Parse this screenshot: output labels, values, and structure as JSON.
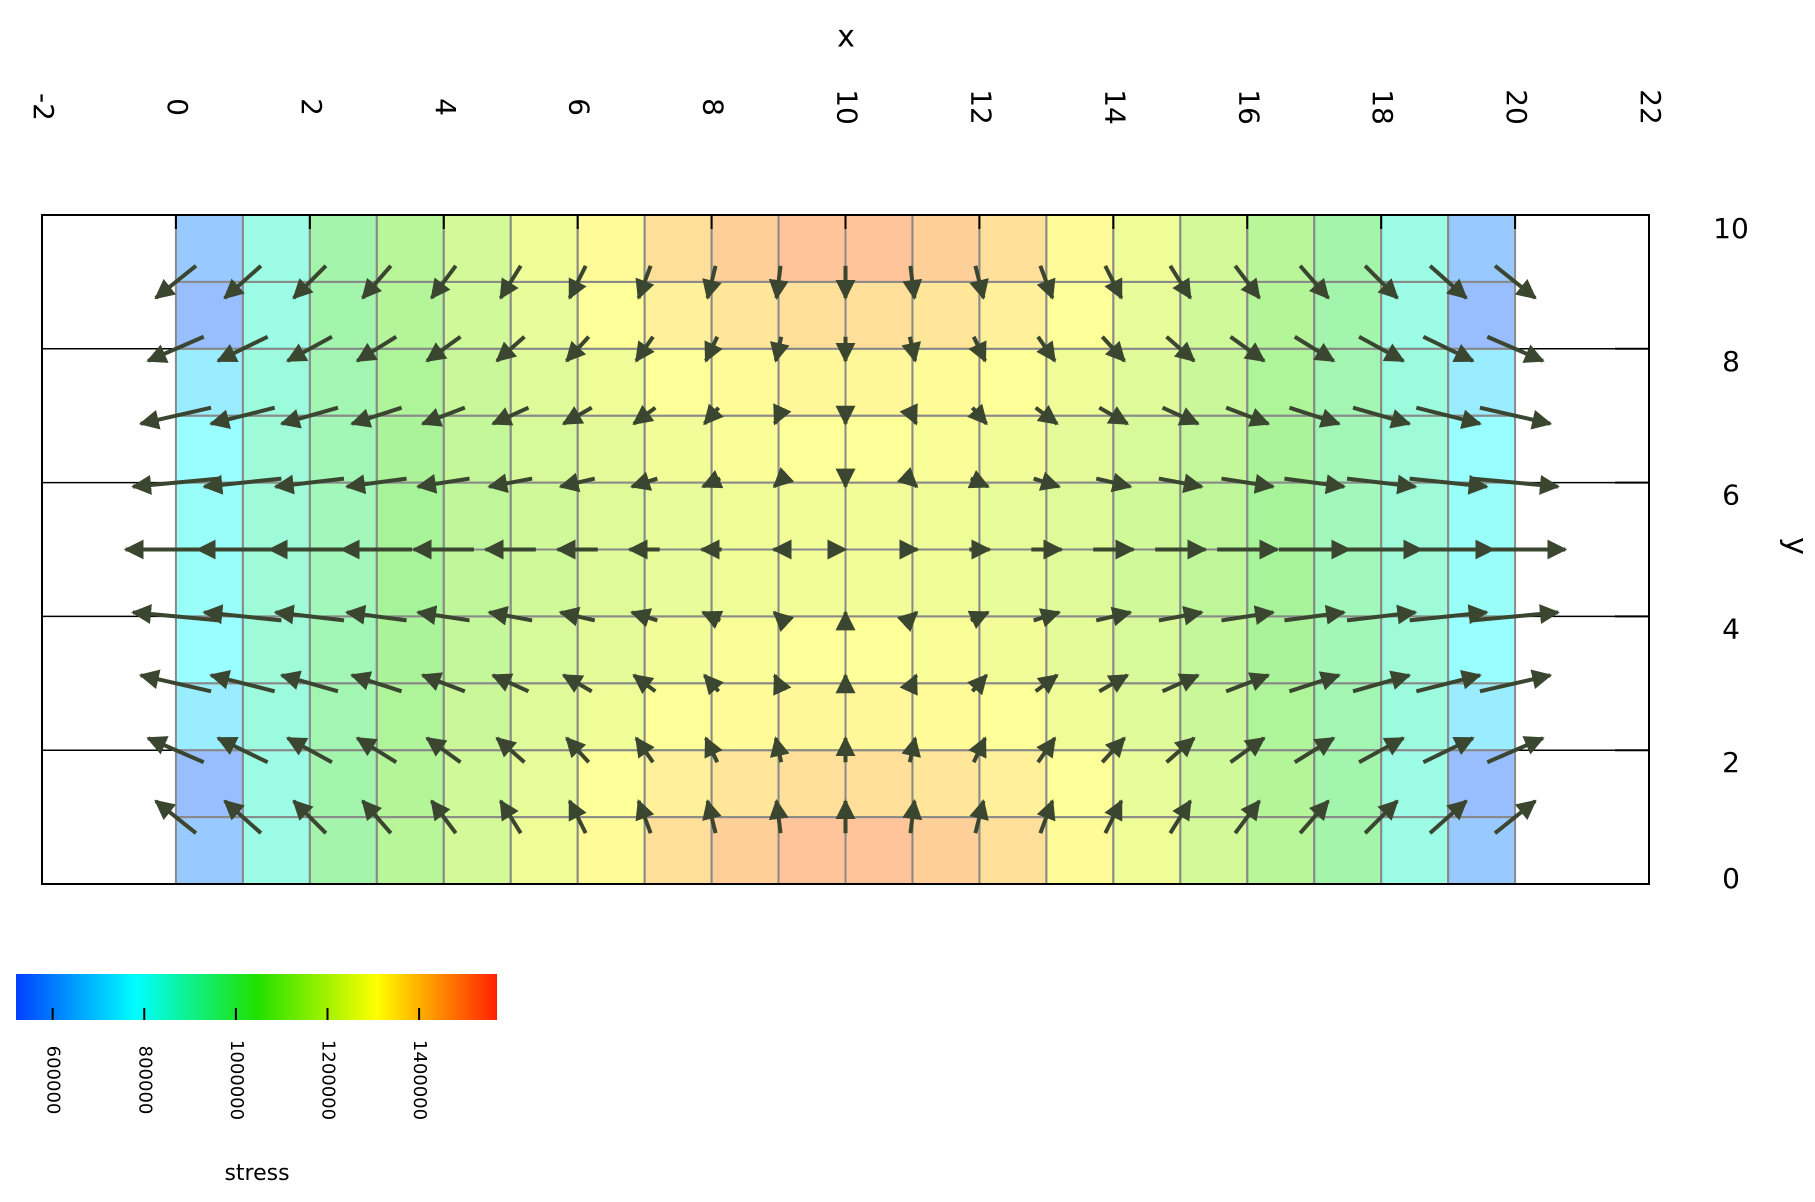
{
  "chart_data": {
    "type": "heatmap-quiver",
    "x_label": "x",
    "y_label": "y",
    "xlim": [
      -2,
      22
    ],
    "ylim": [
      0,
      10
    ],
    "xticks": [
      -2,
      0,
      2,
      4,
      6,
      8,
      10,
      12,
      14,
      16,
      18,
      20,
      22
    ],
    "yticks": [
      0,
      2,
      4,
      6,
      8,
      10
    ],
    "grid": true,
    "x_edges": [
      0,
      1,
      2,
      3,
      4,
      5,
      6,
      7,
      8,
      9,
      10,
      11,
      12,
      13,
      14,
      15,
      16,
      17,
      18,
      19,
      20
    ],
    "y_edges": [
      0,
      1,
      2,
      3,
      4,
      5,
      6,
      7,
      8,
      9,
      10
    ],
    "values": [
      [
        600000,
        850000,
        1000000,
        1100000,
        1180000,
        1260000,
        1320000,
        1400000,
        1450000,
        1480000,
        1480000,
        1450000,
        1400000,
        1320000,
        1260000,
        1180000,
        1100000,
        1000000,
        850000,
        600000
      ],
      [
        560000,
        850000,
        990000,
        1090000,
        1170000,
        1240000,
        1300000,
        1350000,
        1380000,
        1400000,
        1400000,
        1380000,
        1350000,
        1300000,
        1240000,
        1170000,
        1090000,
        990000,
        850000,
        560000
      ],
      [
        720000,
        870000,
        980000,
        1070000,
        1150000,
        1210000,
        1260000,
        1300000,
        1320000,
        1330000,
        1330000,
        1320000,
        1300000,
        1260000,
        1210000,
        1150000,
        1070000,
        980000,
        870000,
        720000
      ],
      [
        780000,
        880000,
        970000,
        1060000,
        1130000,
        1190000,
        1230000,
        1270000,
        1290000,
        1300000,
        1300000,
        1290000,
        1270000,
        1230000,
        1190000,
        1130000,
        1060000,
        970000,
        880000,
        780000
      ],
      [
        800000,
        880000,
        960000,
        1050000,
        1120000,
        1170000,
        1210000,
        1240000,
        1260000,
        1270000,
        1270000,
        1260000,
        1240000,
        1210000,
        1170000,
        1120000,
        1050000,
        960000,
        880000,
        800000
      ],
      [
        800000,
        880000,
        960000,
        1050000,
        1120000,
        1170000,
        1210000,
        1240000,
        1260000,
        1270000,
        1270000,
        1260000,
        1240000,
        1210000,
        1170000,
        1120000,
        1050000,
        960000,
        880000,
        800000
      ],
      [
        780000,
        880000,
        970000,
        1060000,
        1130000,
        1190000,
        1230000,
        1270000,
        1290000,
        1300000,
        1300000,
        1290000,
        1270000,
        1230000,
        1190000,
        1130000,
        1060000,
        970000,
        880000,
        780000
      ],
      [
        720000,
        870000,
        980000,
        1070000,
        1150000,
        1210000,
        1260000,
        1300000,
        1320000,
        1330000,
        1330000,
        1320000,
        1300000,
        1260000,
        1210000,
        1150000,
        1070000,
        980000,
        870000,
        720000
      ],
      [
        560000,
        850000,
        990000,
        1090000,
        1170000,
        1240000,
        1300000,
        1350000,
        1380000,
        1400000,
        1400000,
        1380000,
        1350000,
        1300000,
        1240000,
        1170000,
        1090000,
        990000,
        850000,
        560000
      ],
      [
        600000,
        850000,
        1000000,
        1100000,
        1180000,
        1260000,
        1320000,
        1400000,
        1450000,
        1480000,
        1480000,
        1450000,
        1400000,
        1320000,
        1260000,
        1180000,
        1100000,
        1000000,
        850000,
        600000
      ]
    ],
    "colormap": [
      "#0040ff",
      "#00ffff",
      "#20e000",
      "#ffff00",
      "#ff2000"
    ],
    "cell_opacity": 0.4,
    "mesh_color": "#8a8a8a",
    "colorbar": {
      "label": "stress",
      "clim": [
        520000,
        1570000
      ],
      "ticks": [
        600000,
        800000,
        1000000,
        1200000,
        1400000
      ]
    },
    "vectors": {
      "color": "#3b4630",
      "x": [
        0,
        1,
        2,
        3,
        4,
        5,
        6,
        7,
        8,
        9,
        10,
        11,
        12,
        13,
        14,
        15,
        16,
        17,
        18,
        19,
        20
      ],
      "y": [
        1,
        2,
        3,
        4,
        5,
        6,
        7,
        8,
        9
      ],
      "u": [
        [
          -0.6,
          -0.54,
          -0.48,
          -0.42,
          -0.36,
          -0.3,
          -0.24,
          -0.18,
          -0.12,
          -0.06,
          0,
          0.06,
          0.12,
          0.18,
          0.24,
          0.3,
          0.36,
          0.42,
          0.48,
          0.54,
          0.6
        ],
        [
          -0.83,
          -0.74,
          -0.66,
          -0.58,
          -0.5,
          -0.41,
          -0.33,
          -0.25,
          -0.17,
          -0.08,
          0,
          0.08,
          0.17,
          0.25,
          0.33,
          0.41,
          0.5,
          0.58,
          0.66,
          0.74,
          0.83
        ],
        [
          -1.05,
          -0.95,
          -0.84,
          -0.74,
          -0.63,
          -0.53,
          -0.42,
          -0.32,
          -0.21,
          -0.11,
          0,
          0.11,
          0.21,
          0.32,
          0.42,
          0.53,
          0.63,
          0.74,
          0.84,
          0.95,
          1.05
        ],
        [
          -1.28,
          -1.15,
          -1.02,
          -0.89,
          -0.77,
          -0.64,
          -0.51,
          -0.38,
          -0.26,
          -0.13,
          0,
          0.13,
          0.26,
          0.38,
          0.51,
          0.64,
          0.77,
          0.89,
          1.02,
          1.15,
          1.28
        ],
        [
          -1.5,
          -1.35,
          -1.2,
          -1.05,
          -0.9,
          -0.75,
          -0.6,
          -0.45,
          -0.3,
          -0.15,
          0,
          0.15,
          0.3,
          0.45,
          0.6,
          0.75,
          0.9,
          1.05,
          1.2,
          1.35,
          1.5
        ],
        [
          -1.28,
          -1.15,
          -1.02,
          -0.89,
          -0.77,
          -0.64,
          -0.51,
          -0.38,
          -0.26,
          -0.13,
          0,
          0.13,
          0.26,
          0.38,
          0.51,
          0.64,
          0.77,
          0.89,
          1.02,
          1.15,
          1.28
        ],
        [
          -1.05,
          -0.95,
          -0.84,
          -0.74,
          -0.63,
          -0.53,
          -0.42,
          -0.32,
          -0.21,
          -0.11,
          0,
          0.11,
          0.21,
          0.32,
          0.42,
          0.53,
          0.63,
          0.74,
          0.84,
          0.95,
          1.05
        ],
        [
          -0.83,
          -0.74,
          -0.66,
          -0.58,
          -0.5,
          -0.41,
          -0.33,
          -0.25,
          -0.17,
          -0.08,
          0,
          0.08,
          0.17,
          0.25,
          0.33,
          0.41,
          0.5,
          0.58,
          0.66,
          0.74,
          0.83
        ],
        [
          -0.6,
          -0.54,
          -0.48,
          -0.42,
          -0.36,
          -0.3,
          -0.24,
          -0.18,
          -0.12,
          -0.06,
          0,
          0.06,
          0.12,
          0.18,
          0.24,
          0.3,
          0.36,
          0.42,
          0.48,
          0.54,
          0.6
        ]
      ],
      "v": [
        [
          0.48,
          0.48,
          0.48,
          0.48,
          0.48,
          0.48,
          0.48,
          0.48,
          0.48,
          0.48,
          0.48,
          0.48,
          0.48,
          0.48,
          0.48,
          0.48,
          0.48,
          0.48,
          0.48,
          0.48,
          0.48
        ],
        [
          0.36,
          0.36,
          0.36,
          0.36,
          0.36,
          0.36,
          0.36,
          0.36,
          0.36,
          0.36,
          0.36,
          0.36,
          0.36,
          0.36,
          0.36,
          0.36,
          0.36,
          0.36,
          0.36,
          0.36,
          0.36
        ],
        [
          0.24,
          0.24,
          0.24,
          0.24,
          0.24,
          0.24,
          0.24,
          0.24,
          0.24,
          0.24,
          0.24,
          0.24,
          0.24,
          0.24,
          0.24,
          0.24,
          0.24,
          0.24,
          0.24,
          0.24,
          0.24
        ],
        [
          0.12,
          0.12,
          0.12,
          0.12,
          0.12,
          0.12,
          0.12,
          0.12,
          0.12,
          0.12,
          0.12,
          0.12,
          0.12,
          0.12,
          0.12,
          0.12,
          0.12,
          0.12,
          0.12,
          0.12,
          0.12
        ],
        [
          0,
          0,
          0,
          0,
          0,
          0,
          0,
          0,
          0,
          0,
          0,
          0,
          0,
          0,
          0,
          0,
          0,
          0,
          0,
          0,
          0
        ],
        [
          -0.12,
          -0.12,
          -0.12,
          -0.12,
          -0.12,
          -0.12,
          -0.12,
          -0.12,
          -0.12,
          -0.12,
          -0.12,
          -0.12,
          -0.12,
          -0.12,
          -0.12,
          -0.12,
          -0.12,
          -0.12,
          -0.12,
          -0.12,
          -0.12
        ],
        [
          -0.24,
          -0.24,
          -0.24,
          -0.24,
          -0.24,
          -0.24,
          -0.24,
          -0.24,
          -0.24,
          -0.24,
          -0.24,
          -0.24,
          -0.24,
          -0.24,
          -0.24,
          -0.24,
          -0.24,
          -0.24,
          -0.24,
          -0.24,
          -0.24
        ],
        [
          -0.36,
          -0.36,
          -0.36,
          -0.36,
          -0.36,
          -0.36,
          -0.36,
          -0.36,
          -0.36,
          -0.36,
          -0.36,
          -0.36,
          -0.36,
          -0.36,
          -0.36,
          -0.36,
          -0.36,
          -0.36,
          -0.36,
          -0.36,
          -0.36
        ],
        [
          -0.48,
          -0.48,
          -0.48,
          -0.48,
          -0.48,
          -0.48,
          -0.48,
          -0.48,
          -0.48,
          -0.48,
          -0.48,
          -0.48,
          -0.48,
          -0.48,
          -0.48,
          -0.48,
          -0.48,
          -0.48,
          -0.48,
          -0.48,
          -0.48
        ]
      ]
    }
  }
}
